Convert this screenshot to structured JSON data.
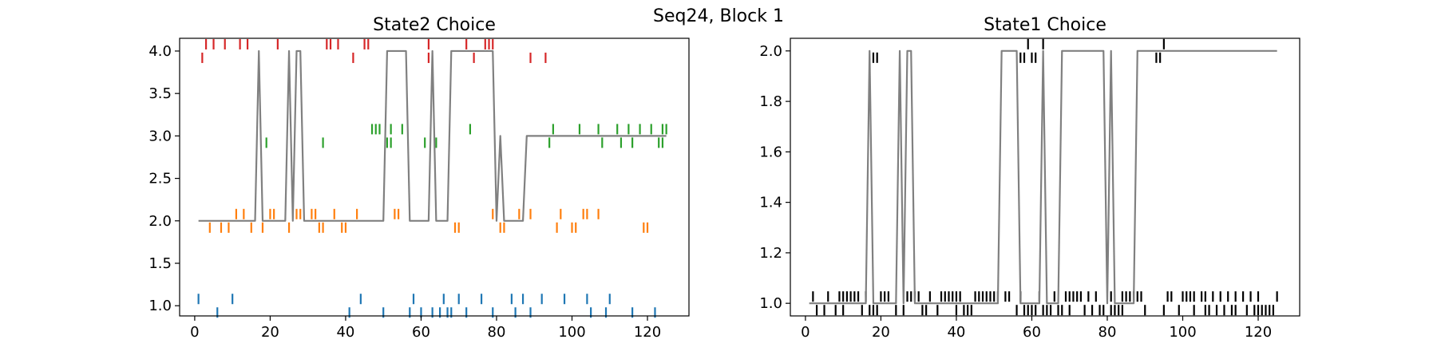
{
  "figure": {
    "suptitle": "Seq24, Block 1"
  },
  "chart_data": [
    {
      "type": "line",
      "title": "State2 Choice",
      "xlabel": "",
      "ylabel": "",
      "xlim": [
        -4,
        131
      ],
      "ylim": [
        0.88,
        4.15
      ],
      "xticks": [
        0,
        20,
        40,
        60,
        80,
        100,
        120
      ],
      "yticks": [
        1.0,
        1.5,
        2.0,
        2.5,
        3.0,
        3.5,
        4.0
      ],
      "ytick_labels": [
        "1.0",
        "1.5",
        "2.0",
        "2.5",
        "3.0",
        "3.5",
        "4.0"
      ],
      "grid": false,
      "line": {
        "color": "#808080",
        "x": [
          1,
          16,
          17,
          18,
          24,
          25,
          26,
          27,
          28,
          29,
          50,
          51,
          55,
          56,
          57,
          58,
          61,
          62,
          63,
          64,
          66,
          67,
          68,
          78,
          79,
          80,
          81,
          82,
          86,
          87,
          88,
          125
        ],
        "y": [
          2,
          2,
          4,
          2,
          2,
          4,
          2,
          4,
          4,
          2,
          2,
          4,
          4,
          4,
          2,
          2,
          2,
          2,
          4,
          2,
          2,
          2,
          4,
          4,
          4,
          2,
          3,
          2,
          2,
          2,
          3,
          3
        ]
      },
      "ticks": [
        {
          "color": "#1f77b4",
          "level": 1,
          "up": [
            1,
            10,
            44,
            58,
            66,
            70,
            76,
            84,
            87,
            92,
            98,
            104,
            110
          ],
          "down": [
            6,
            41,
            50,
            57,
            60,
            63,
            65,
            67,
            68,
            72,
            79,
            85,
            89,
            105,
            109,
            116,
            122
          ]
        },
        {
          "color": "#ff7f0e",
          "level": 2,
          "up": [
            11,
            13,
            20,
            21,
            27,
            28,
            31,
            32,
            37,
            43,
            53,
            54,
            79,
            86,
            89,
            97,
            103,
            104,
            107
          ],
          "down": [
            4,
            7,
            9,
            15,
            18,
            25,
            33,
            34,
            39,
            40,
            69,
            70,
            81,
            82,
            96,
            100,
            101,
            119,
            120
          ]
        },
        {
          "color": "#2ca02c",
          "level": 3,
          "up": [
            47,
            48,
            49,
            52,
            55,
            73,
            95,
            102,
            107,
            112,
            115,
            118,
            121,
            124,
            125
          ],
          "down": [
            19,
            34,
            51,
            52,
            61,
            64,
            94,
            108,
            113,
            116,
            123,
            124
          ]
        },
        {
          "color": "#d62728",
          "level": 4,
          "up": [
            3,
            5,
            8,
            12,
            14,
            22,
            35,
            36,
            38,
            45,
            46,
            62,
            72,
            77,
            78,
            79
          ],
          "down": [
            2,
            42,
            62,
            74,
            89,
            93
          ]
        }
      ]
    },
    {
      "type": "line",
      "title": "State1 Choice",
      "xlabel": "",
      "ylabel": "",
      "xlim": [
        -4,
        131
      ],
      "ylim": [
        0.95,
        2.05
      ],
      "xticks": [
        0,
        20,
        40,
        60,
        80,
        100,
        120
      ],
      "yticks": [
        1.0,
        1.2,
        1.4,
        1.6,
        1.8,
        2.0
      ],
      "ytick_labels": [
        "1.0",
        "1.2",
        "1.4",
        "1.6",
        "1.8",
        "2.0"
      ],
      "grid": false,
      "line": {
        "color": "#808080",
        "x": [
          1,
          16,
          17,
          18,
          24,
          25,
          26,
          27,
          28,
          29,
          51,
          52,
          55,
          56,
          57,
          62,
          63,
          64,
          67,
          68,
          78,
          79,
          80,
          81,
          82,
          87,
          88,
          125
        ],
        "y": [
          1,
          1,
          2,
          1,
          1,
          2,
          1,
          2,
          2,
          1,
          1,
          2,
          2,
          2,
          1,
          1,
          2,
          1,
          1,
          2,
          2,
          2,
          1,
          2,
          1,
          1,
          2,
          2
        ]
      },
      "ticks": [
        {
          "color": "#000000",
          "level": 1,
          "up": [
            2,
            6,
            9,
            10,
            11,
            12,
            13,
            14,
            16,
            20,
            21,
            22,
            27,
            28,
            29,
            30,
            33,
            36,
            37,
            38,
            39,
            40,
            41,
            45,
            46,
            47,
            48,
            49,
            50,
            51,
            53,
            54,
            57,
            62,
            66,
            69,
            70,
            71,
            72,
            73,
            75,
            77,
            81,
            84,
            85,
            86,
            87,
            88,
            89,
            96,
            97,
            100,
            101,
            102,
            103,
            105,
            106,
            108,
            110,
            112,
            114,
            116,
            118,
            120,
            125
          ],
          "down": [
            3,
            5,
            8,
            10,
            15,
            17,
            18,
            19,
            24,
            26,
            31,
            32,
            35,
            40,
            42,
            43,
            44,
            56,
            58,
            59,
            60,
            61,
            63,
            64,
            65,
            67,
            68,
            70,
            74,
            76,
            78,
            79,
            81,
            82,
            83,
            84,
            90,
            95,
            99,
            103,
            106,
            107,
            109,
            111,
            113,
            114,
            117,
            119,
            120,
            121,
            122,
            123,
            124
          ]
        },
        {
          "color": "#000000",
          "level": 2,
          "up": [
            59,
            63,
            95
          ],
          "down": [
            18,
            19,
            57,
            58,
            60,
            61,
            93,
            94
          ]
        }
      ]
    }
  ]
}
